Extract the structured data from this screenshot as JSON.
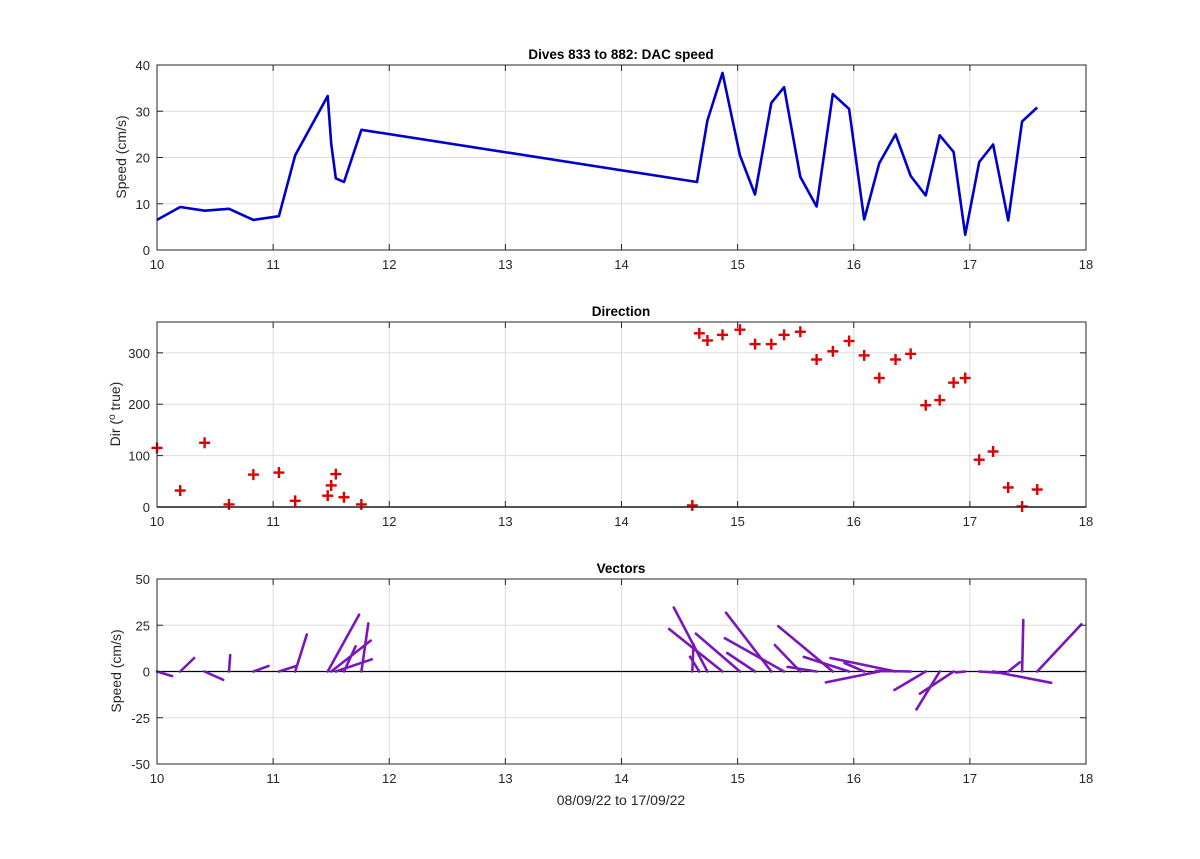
{
  "chart_data": [
    {
      "type": "line",
      "title": "Dives 833 to 882: DAC speed",
      "xlabel": "",
      "ylabel": "Speed (cm/s)",
      "xlim": [
        10,
        18
      ],
      "ylim": [
        0,
        40
      ],
      "xticks": [
        "10",
        "11",
        "12",
        "13",
        "14",
        "15",
        "16",
        "17",
        "18"
      ],
      "yticks": [
        "0",
        "10",
        "20",
        "30",
        "40"
      ],
      "grid": true,
      "color": "#0000CC",
      "series": [
        {
          "x": [
            10.0,
            10.2,
            10.41,
            10.62,
            10.83,
            11.05,
            11.19,
            11.47,
            11.5,
            11.54,
            11.61,
            11.76,
            14.65,
            14.74,
            14.87,
            15.02,
            15.15,
            15.29,
            15.4,
            15.54,
            15.68,
            15.82,
            15.96,
            16.09,
            16.22,
            16.36,
            16.49,
            16.62,
            16.74,
            16.86,
            16.96,
            17.08,
            17.2,
            17.33,
            17.45,
            17.58
          ],
          "y": [
            6.5,
            9.3,
            8.5,
            8.9,
            6.5,
            7.3,
            20.5,
            33.3,
            23.0,
            15.5,
            14.7,
            26.0,
            14.7,
            28.0,
            38.3,
            20.5,
            12.0,
            31.8,
            35.2,
            15.8,
            9.4,
            33.7,
            30.5,
            6.6,
            18.8,
            25.0,
            16.0,
            11.8,
            24.8,
            21.2,
            3.3,
            19.0,
            22.8,
            6.4,
            27.8,
            30.8
          ]
        }
      ]
    },
    {
      "type": "scatter",
      "title": "Direction",
      "xlabel": "",
      "ylabel": "Dir (° true)",
      "ylabel_parts": [
        "Dir (",
        "o",
        " true)"
      ],
      "xlim": [
        10,
        18
      ],
      "ylim": [
        0,
        360
      ],
      "xticks": [
        "10",
        "11",
        "12",
        "13",
        "14",
        "15",
        "16",
        "17",
        "18"
      ],
      "yticks": [
        "0",
        "100",
        "200",
        "300"
      ],
      "grid": true,
      "marker": "+",
      "color": "#DD0000",
      "series": [
        {
          "x": [
            10.0,
            10.2,
            10.41,
            10.62,
            10.83,
            11.05,
            11.19,
            11.47,
            11.5,
            11.54,
            11.61,
            11.76,
            14.61,
            14.67,
            14.74,
            14.87,
            15.02,
            15.15,
            15.29,
            15.4,
            15.54,
            15.68,
            15.82,
            15.96,
            16.09,
            16.22,
            16.36,
            16.49,
            16.62,
            16.74,
            16.86,
            16.96,
            17.08,
            17.2,
            17.33,
            17.45,
            17.58
          ],
          "y": [
            115,
            32,
            125,
            5,
            63,
            67,
            12,
            22,
            42,
            64,
            19,
            5,
            3,
            338,
            324,
            335,
            345,
            317,
            317,
            335,
            341,
            287,
            303,
            323,
            295,
            251,
            287,
            298,
            198,
            208,
            242,
            251,
            92,
            108,
            38,
            1,
            34
          ]
        }
      ]
    },
    {
      "type": "line",
      "subtype": "vectors",
      "title": "Vectors",
      "xlabel": "08/09/22 to 17/09/22",
      "ylabel": "Speed (cm/s)",
      "xlim": [
        10,
        18
      ],
      "ylim": [
        -50,
        50
      ],
      "xticks": [
        "10",
        "11",
        "12",
        "13",
        "14",
        "15",
        "16",
        "17",
        "18"
      ],
      "yticks": [
        "-50",
        "-25",
        "0",
        "25",
        "50"
      ],
      "grid": true,
      "color": "#7B16B8",
      "vectors": [
        {
          "x": 10.0,
          "u": 0.13,
          "v": -2.5
        },
        {
          "x": 10.2,
          "u": 0.12,
          "v": 7.3
        },
        {
          "x": 10.41,
          "u": 0.16,
          "v": -4.5
        },
        {
          "x": 10.62,
          "u": 0.01,
          "v": 8.8
        },
        {
          "x": 10.83,
          "u": 0.13,
          "v": 3.0
        },
        {
          "x": 11.05,
          "u": 0.15,
          "v": 3.0
        },
        {
          "x": 11.19,
          "u": 0.1,
          "v": 20.0
        },
        {
          "x": 11.47,
          "u": 0.27,
          "v": 30.7
        },
        {
          "x": 11.5,
          "u": 0.34,
          "v": 16.7
        },
        {
          "x": 11.54,
          "u": 0.31,
          "v": 6.6
        },
        {
          "x": 11.61,
          "u": 0.1,
          "v": 13.6
        },
        {
          "x": 11.76,
          "u": 0.06,
          "v": 26.0
        },
        {
          "x": 14.61,
          "u": 0.01,
          "v": 14.7
        },
        {
          "x": 14.67,
          "u": -0.08,
          "v": 8.0
        },
        {
          "x": 14.74,
          "u": -0.29,
          "v": 34.6
        },
        {
          "x": 14.87,
          "u": -0.46,
          "v": 23.0
        },
        {
          "x": 15.02,
          "u": -0.38,
          "v": 20.5
        },
        {
          "x": 15.15,
          "u": -0.24,
          "v": 10.0
        },
        {
          "x": 15.29,
          "u": -0.39,
          "v": 31.8
        },
        {
          "x": 15.4,
          "u": -0.51,
          "v": 18.0
        },
        {
          "x": 15.54,
          "u": -0.22,
          "v": 14.3
        },
        {
          "x": 15.68,
          "u": -0.25,
          "v": 2.5
        },
        {
          "x": 15.82,
          "u": -0.47,
          "v": 24.5
        },
        {
          "x": 15.96,
          "u": -0.39,
          "v": 7.9
        },
        {
          "x": 16.09,
          "u": -0.17,
          "v": 4.6
        },
        {
          "x": 16.22,
          "u": -0.46,
          "v": -5.9
        },
        {
          "x": 16.36,
          "u": -0.56,
          "v": 7.3
        },
        {
          "x": 16.49,
          "u": -0.3,
          "v": 0.3
        },
        {
          "x": 16.62,
          "u": -0.27,
          "v": -10.0
        },
        {
          "x": 16.74,
          "u": -0.2,
          "v": -20.5
        },
        {
          "x": 16.86,
          "u": -0.29,
          "v": -12.0
        },
        {
          "x": 16.96,
          "u": -0.08,
          "v": -0.5
        },
        {
          "x": 17.08,
          "u": 0.23,
          "v": -0.9
        },
        {
          "x": 17.2,
          "u": 0.5,
          "v": -6.1
        },
        {
          "x": 17.33,
          "u": 0.1,
          "v": 5.0
        },
        {
          "x": 17.45,
          "u": 0.01,
          "v": 27.8
        },
        {
          "x": 17.58,
          "u": 0.38,
          "v": 25.5
        }
      ]
    }
  ]
}
